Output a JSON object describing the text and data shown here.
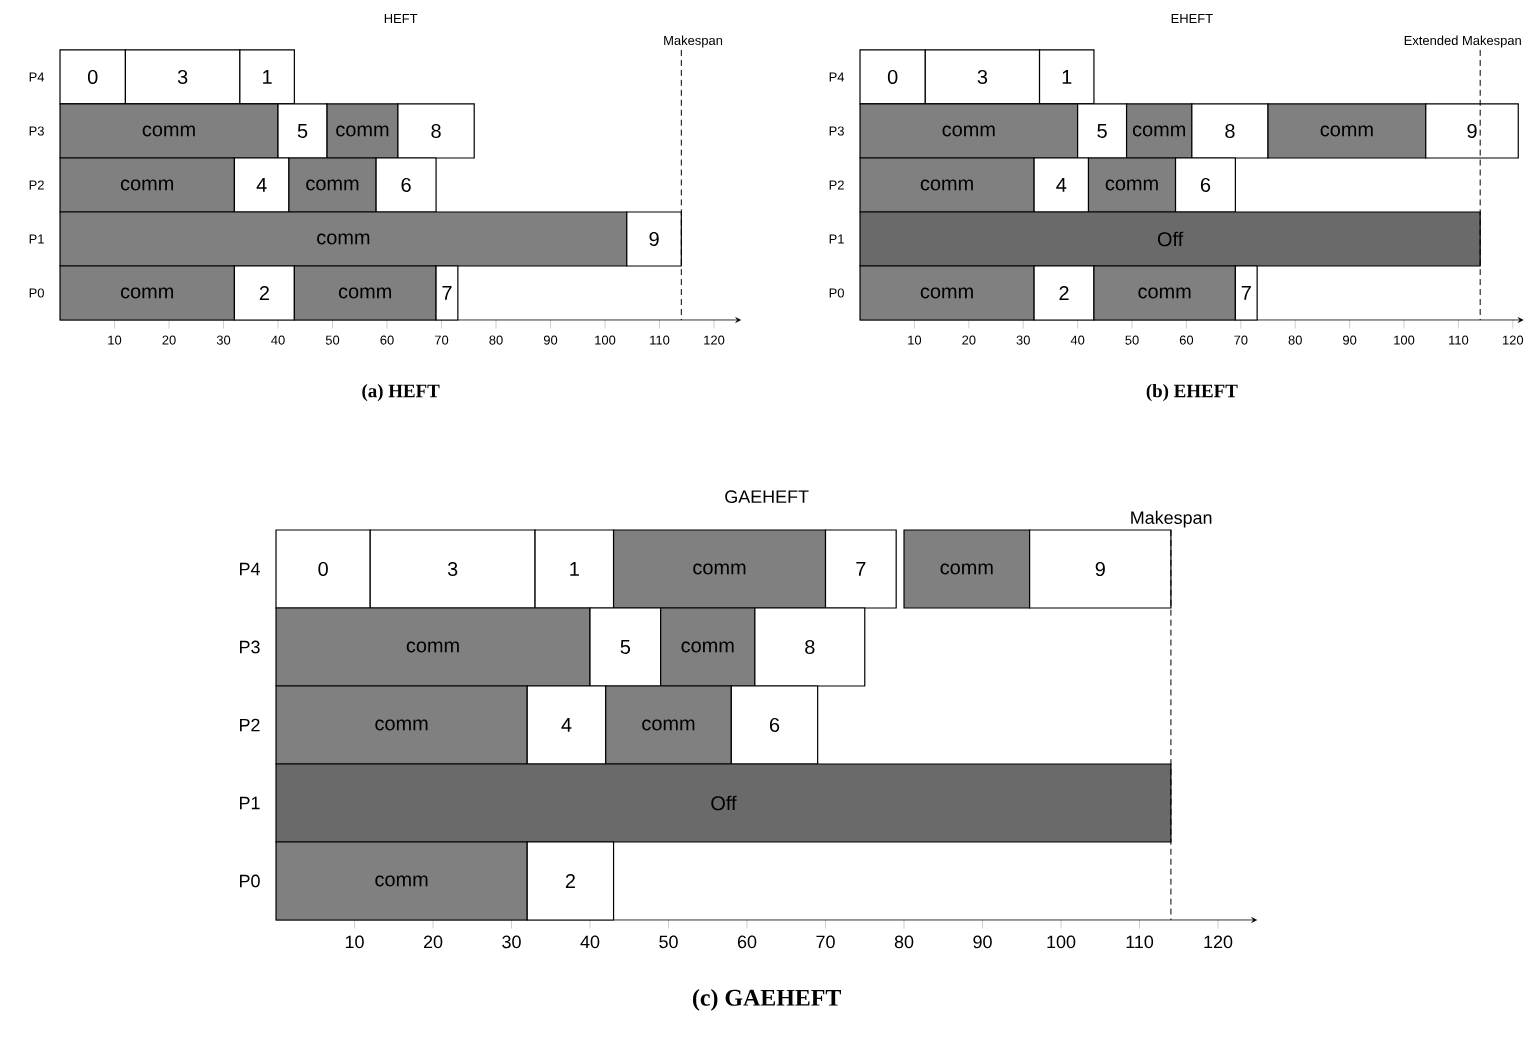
{
  "chart_data": [
    {
      "type": "bar",
      "orientation": "horizontal",
      "title": "HEFT",
      "annotations": [
        "(a) HEFT"
      ],
      "categories": [
        "P4",
        "P3",
        "P2",
        "P1",
        "P0"
      ],
      "xlim": [
        0,
        125
      ],
      "xticks": [
        10,
        20,
        30,
        40,
        50,
        60,
        70,
        80,
        90,
        100,
        110,
        120
      ],
      "series": [
        {
          "name": "0",
          "color": "#ffffff",
          "base": [
            0,
            null,
            null,
            null,
            null
          ],
          "values": [
            12,
            null,
            null,
            null,
            null
          ]
        },
        {
          "name": "3",
          "color": "#ffffff",
          "base": [
            12,
            null,
            null,
            null,
            null
          ],
          "values": [
            21,
            null,
            null,
            null,
            null
          ]
        },
        {
          "name": "1",
          "color": "#ffffff",
          "base": [
            33,
            null,
            null,
            null,
            null
          ],
          "values": [
            10,
            null,
            null,
            null,
            null
          ]
        },
        {
          "name": "comm",
          "color": "#808080",
          "base": [
            null,
            0,
            null,
            null,
            null
          ],
          "values": [
            null,
            40,
            null,
            null,
            null
          ]
        },
        {
          "name": "5",
          "color": "#ffffff",
          "base": [
            null,
            40,
            null,
            null,
            null
          ],
          "values": [
            null,
            9,
            null,
            null,
            null
          ]
        },
        {
          "name": "comm",
          "color": "#808080",
          "base": [
            null,
            49,
            null,
            null,
            null
          ],
          "values": [
            null,
            13,
            null,
            null,
            null
          ]
        },
        {
          "name": "8",
          "color": "#ffffff",
          "base": [
            null,
            62,
            null,
            null,
            null
          ],
          "values": [
            null,
            14,
            null,
            null,
            null
          ]
        },
        {
          "name": "comm",
          "color": "#808080",
          "base": [
            null,
            null,
            0,
            null,
            null
          ],
          "values": [
            null,
            null,
            32,
            null,
            null
          ]
        },
        {
          "name": "4",
          "color": "#ffffff",
          "base": [
            null,
            null,
            32,
            null,
            null
          ],
          "values": [
            null,
            null,
            10,
            null,
            null
          ]
        },
        {
          "name": "comm",
          "color": "#808080",
          "base": [
            null,
            null,
            42,
            null,
            null
          ],
          "values": [
            null,
            null,
            16,
            null,
            null
          ]
        },
        {
          "name": "6",
          "color": "#ffffff",
          "base": [
            null,
            null,
            58,
            null,
            null
          ],
          "values": [
            null,
            null,
            11,
            null,
            null
          ]
        },
        {
          "name": "comm",
          "color": "#808080",
          "base": [
            null,
            null,
            null,
            0,
            null
          ],
          "values": [
            null,
            null,
            null,
            104,
            null
          ]
        },
        {
          "name": "9",
          "color": "#ffffff",
          "base": [
            null,
            null,
            null,
            104,
            null
          ],
          "values": [
            null,
            null,
            null,
            10,
            null
          ]
        },
        {
          "name": "comm",
          "color": "#808080",
          "base": [
            null,
            null,
            null,
            null,
            0
          ],
          "values": [
            null,
            null,
            null,
            null,
            32
          ]
        },
        {
          "name": "2",
          "color": "#ffffff",
          "base": [
            null,
            null,
            null,
            null,
            32
          ],
          "values": [
            null,
            null,
            null,
            null,
            11
          ]
        },
        {
          "name": "comm",
          "color": "#808080",
          "base": [
            null,
            null,
            null,
            null,
            43
          ],
          "values": [
            null,
            null,
            null,
            null,
            26
          ]
        },
        {
          "name": "7",
          "color": "#ffffff",
          "base": [
            null,
            null,
            null,
            null,
            69
          ],
          "values": [
            null,
            null,
            null,
            null,
            4
          ]
        }
      ],
      "ref_lines": [
        {
          "axis": "x",
          "value": 114,
          "label": "Makespan",
          "line_style": "dashed"
        }
      ]
    },
    {
      "type": "bar",
      "orientation": "horizontal",
      "title": "EHEFT",
      "annotations": [
        "(b) EHEFT"
      ],
      "categories": [
        "P4",
        "P3",
        "P2",
        "P1",
        "P0"
      ],
      "xlim": [
        0,
        122
      ],
      "xticks": [
        10,
        20,
        30,
        40,
        50,
        60,
        70,
        80,
        90,
        100,
        110,
        120
      ],
      "series": [
        {
          "name": "0",
          "color": "#ffffff",
          "base": [
            0,
            null,
            null,
            null,
            null
          ],
          "values": [
            12,
            null,
            null,
            null,
            null
          ]
        },
        {
          "name": "3",
          "color": "#ffffff",
          "base": [
            12,
            null,
            null,
            null,
            null
          ],
          "values": [
            21,
            null,
            null,
            null,
            null
          ]
        },
        {
          "name": "1",
          "color": "#ffffff",
          "base": [
            33,
            null,
            null,
            null,
            null
          ],
          "values": [
            10,
            null,
            null,
            null,
            null
          ]
        },
        {
          "name": "comm",
          "color": "#808080",
          "base": [
            null,
            0,
            null,
            null,
            null
          ],
          "values": [
            null,
            40,
            null,
            null,
            null
          ]
        },
        {
          "name": "5",
          "color": "#ffffff",
          "base": [
            null,
            40,
            null,
            null,
            null
          ],
          "values": [
            null,
            9,
            null,
            null,
            null
          ]
        },
        {
          "name": "comm",
          "color": "#808080",
          "base": [
            null,
            49,
            null,
            null,
            null
          ],
          "values": [
            null,
            12,
            null,
            null,
            null
          ]
        },
        {
          "name": "8",
          "color": "#ffffff",
          "base": [
            null,
            61,
            null,
            null,
            null
          ],
          "values": [
            null,
            14,
            null,
            null,
            null
          ]
        },
        {
          "name": "comm",
          "color": "#808080",
          "base": [
            null,
            75,
            null,
            null,
            null
          ],
          "values": [
            null,
            29,
            null,
            null,
            null
          ]
        },
        {
          "name": "9",
          "color": "#ffffff",
          "base": [
            null,
            104,
            null,
            null,
            null
          ],
          "values": [
            null,
            17,
            null,
            null,
            null
          ]
        },
        {
          "name": "comm",
          "color": "#808080",
          "base": [
            null,
            null,
            0,
            null,
            null
          ],
          "values": [
            null,
            null,
            32,
            null,
            null
          ]
        },
        {
          "name": "4",
          "color": "#ffffff",
          "base": [
            null,
            null,
            32,
            null,
            null
          ],
          "values": [
            null,
            null,
            10,
            null,
            null
          ]
        },
        {
          "name": "comm",
          "color": "#808080",
          "base": [
            null,
            null,
            42,
            null,
            null
          ],
          "values": [
            null,
            null,
            16,
            null,
            null
          ]
        },
        {
          "name": "6",
          "color": "#ffffff",
          "base": [
            null,
            null,
            58,
            null,
            null
          ],
          "values": [
            null,
            null,
            11,
            null,
            null
          ]
        },
        {
          "name": "Off",
          "color": "#6a6a6a",
          "base": [
            null,
            null,
            null,
            0,
            null
          ],
          "values": [
            null,
            null,
            null,
            114,
            null
          ]
        },
        {
          "name": "comm",
          "color": "#808080",
          "base": [
            null,
            null,
            null,
            null,
            0
          ],
          "values": [
            null,
            null,
            null,
            null,
            32
          ]
        },
        {
          "name": "2",
          "color": "#ffffff",
          "base": [
            null,
            null,
            null,
            null,
            32
          ],
          "values": [
            null,
            null,
            null,
            null,
            11
          ]
        },
        {
          "name": "comm",
          "color": "#808080",
          "base": [
            null,
            null,
            null,
            null,
            43
          ],
          "values": [
            null,
            null,
            null,
            null,
            26
          ]
        },
        {
          "name": "7",
          "color": "#ffffff",
          "base": [
            null,
            null,
            null,
            null,
            69
          ],
          "values": [
            null,
            null,
            null,
            null,
            4
          ]
        }
      ],
      "ref_lines": [
        {
          "axis": "x",
          "value": 114,
          "label": "Extended Makespan",
          "line_style": "dashed"
        }
      ]
    },
    {
      "type": "bar",
      "orientation": "horizontal",
      "title": "GAEHEFT",
      "annotations": [
        "(c) GAEHEFT"
      ],
      "categories": [
        "P4",
        "P3",
        "P2",
        "P1",
        "P0"
      ],
      "xlim": [
        0,
        125
      ],
      "xticks": [
        10,
        20,
        30,
        40,
        50,
        60,
        70,
        80,
        90,
        100,
        110,
        120
      ],
      "series": [
        {
          "name": "0",
          "color": "#ffffff",
          "base": [
            0,
            null,
            null,
            null,
            null
          ],
          "values": [
            12,
            null,
            null,
            null,
            null
          ]
        },
        {
          "name": "3",
          "color": "#ffffff",
          "base": [
            12,
            null,
            null,
            null,
            null
          ],
          "values": [
            21,
            null,
            null,
            null,
            null
          ]
        },
        {
          "name": "1",
          "color": "#ffffff",
          "base": [
            33,
            null,
            null,
            null,
            null
          ],
          "values": [
            10,
            null,
            null,
            null,
            null
          ]
        },
        {
          "name": "comm",
          "color": "#808080",
          "base": [
            43,
            null,
            null,
            null,
            null
          ],
          "values": [
            27,
            null,
            null,
            null,
            null
          ]
        },
        {
          "name": "7",
          "color": "#ffffff",
          "base": [
            70,
            null,
            null,
            null,
            null
          ],
          "values": [
            9,
            null,
            null,
            null,
            null
          ]
        },
        {
          "name": "comm",
          "color": "#808080",
          "base": [
            80,
            null,
            null,
            null,
            null
          ],
          "values": [
            16,
            null,
            null,
            null,
            null
          ]
        },
        {
          "name": "9",
          "color": "#ffffff",
          "base": [
            96,
            null,
            null,
            null,
            null
          ],
          "values": [
            18,
            null,
            null,
            null,
            null
          ]
        },
        {
          "name": "comm",
          "color": "#808080",
          "base": [
            null,
            0,
            null,
            null,
            null
          ],
          "values": [
            null,
            40,
            null,
            null,
            null
          ]
        },
        {
          "name": "5",
          "color": "#ffffff",
          "base": [
            null,
            40,
            null,
            null,
            null
          ],
          "values": [
            null,
            9,
            null,
            null,
            null
          ]
        },
        {
          "name": "comm",
          "color": "#808080",
          "base": [
            null,
            49,
            null,
            null,
            null
          ],
          "values": [
            null,
            12,
            null,
            null,
            null
          ]
        },
        {
          "name": "8",
          "color": "#ffffff",
          "base": [
            null,
            61,
            null,
            null,
            null
          ],
          "values": [
            null,
            14,
            null,
            null,
            null
          ]
        },
        {
          "name": "comm",
          "color": "#808080",
          "base": [
            null,
            null,
            0,
            null,
            null
          ],
          "values": [
            null,
            null,
            32,
            null,
            null
          ]
        },
        {
          "name": "4",
          "color": "#ffffff",
          "base": [
            null,
            null,
            32,
            null,
            null
          ],
          "values": [
            null,
            null,
            10,
            null,
            null
          ]
        },
        {
          "name": "comm",
          "color": "#808080",
          "base": [
            null,
            null,
            42,
            null,
            null
          ],
          "values": [
            null,
            null,
            16,
            null,
            null
          ]
        },
        {
          "name": "6",
          "color": "#ffffff",
          "base": [
            null,
            null,
            58,
            null,
            null
          ],
          "values": [
            null,
            null,
            11,
            null,
            null
          ]
        },
        {
          "name": "Off",
          "color": "#6a6a6a",
          "base": [
            null,
            null,
            null,
            0,
            null
          ],
          "values": [
            null,
            null,
            null,
            114,
            null
          ]
        },
        {
          "name": "comm",
          "color": "#808080",
          "base": [
            null,
            null,
            null,
            null,
            0
          ],
          "values": [
            null,
            null,
            null,
            null,
            32
          ]
        },
        {
          "name": "2",
          "color": "#ffffff",
          "base": [
            null,
            null,
            null,
            null,
            32
          ],
          "values": [
            null,
            null,
            null,
            null,
            11
          ]
        }
      ],
      "ref_lines": [
        {
          "axis": "x",
          "value": 114,
          "label": "Makespan",
          "line_style": "dashed"
        }
      ]
    }
  ]
}
